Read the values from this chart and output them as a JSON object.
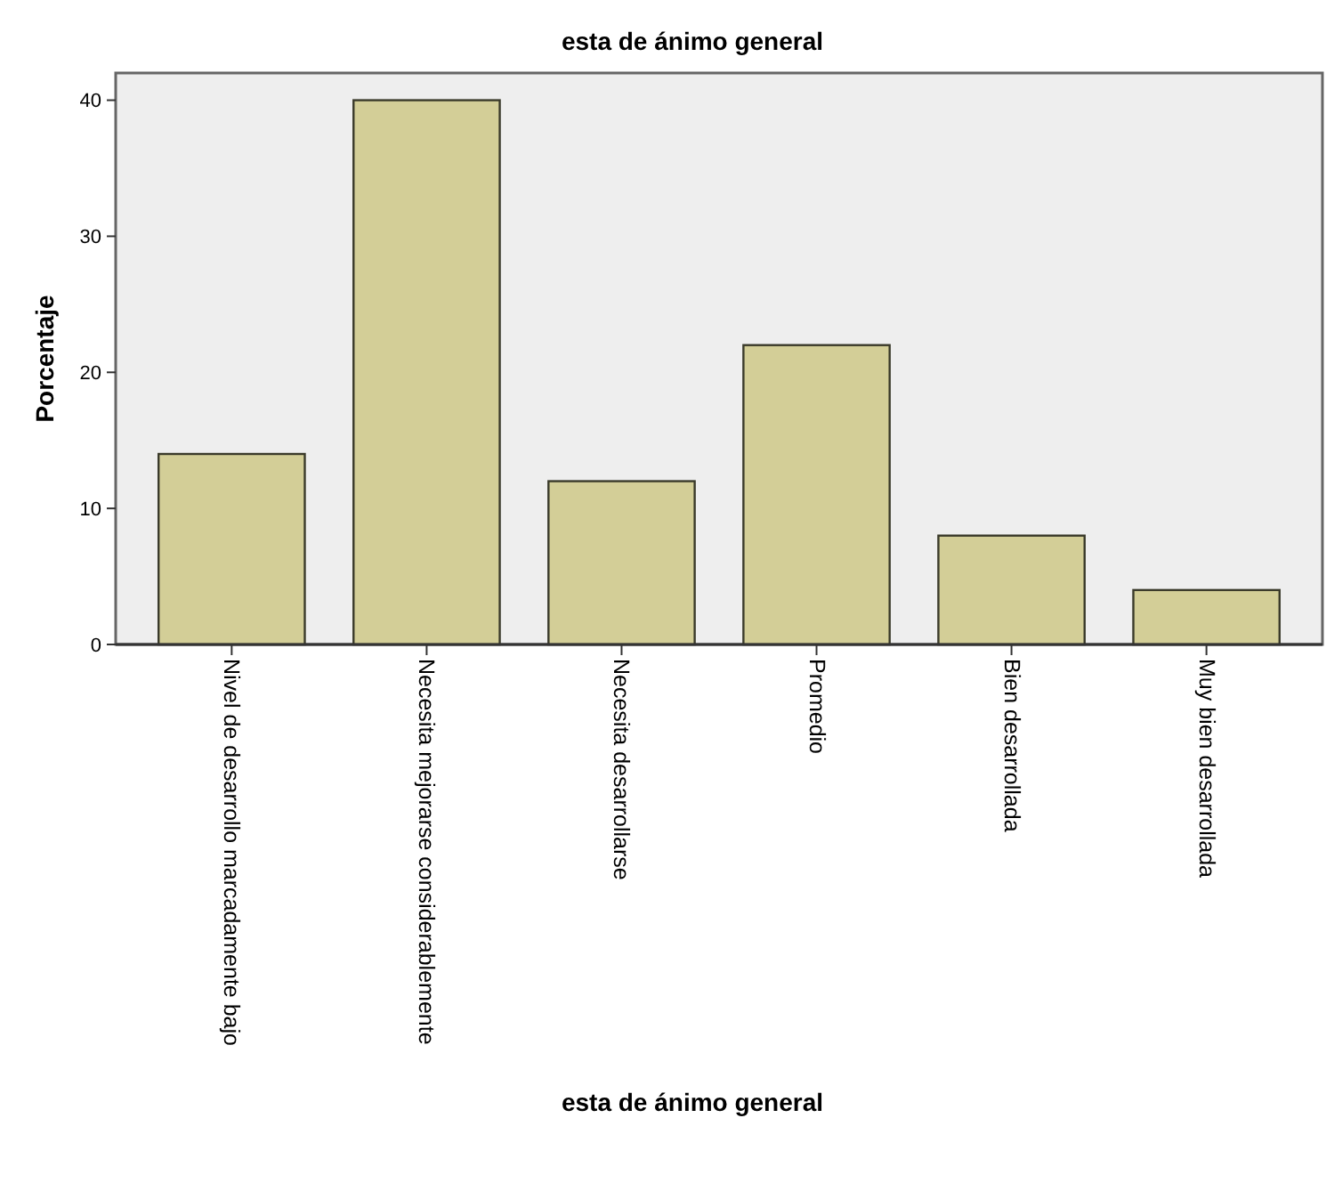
{
  "chart_data": {
    "type": "bar",
    "title": "esta de ánimo general",
    "xlabel": "esta de ánimo general",
    "ylabel": "Porcentaje",
    "categories": [
      "Nivel de desarrollo marcadamente bajo",
      "Necesita mejorarse considerablemente",
      "Necesita desarrollarse",
      "Promedio",
      "Bien desarrollada",
      "Muy bien desarrollada"
    ],
    "values": [
      14,
      40,
      12,
      22,
      8,
      4
    ],
    "color": "#d3ce97",
    "ylim": [
      0,
      42
    ],
    "yticks": [
      0,
      10,
      20,
      30,
      40
    ],
    "grid": false
  }
}
